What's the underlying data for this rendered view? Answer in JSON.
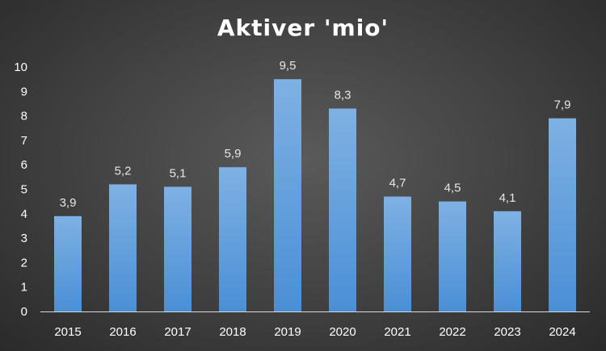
{
  "chart_data": {
    "type": "bar",
    "title": "Aktiver 'mio'",
    "categories": [
      "2015",
      "2016",
      "2017",
      "2018",
      "2019",
      "2020",
      "2021",
      "2022",
      "2023",
      "2024"
    ],
    "values": [
      3.9,
      5.2,
      5.1,
      5.9,
      9.5,
      8.3,
      4.7,
      4.5,
      4.1,
      7.9
    ],
    "data_labels": [
      "3,9",
      "5,2",
      "5,1",
      "5,9",
      "9,5",
      "8,3",
      "4,7",
      "4,5",
      "4,1",
      "7,9"
    ],
    "ylim": [
      0,
      10
    ],
    "yticks": [
      "0",
      "1",
      "2",
      "3",
      "4",
      "5",
      "6",
      "7",
      "8",
      "9",
      "10"
    ],
    "xlabel": "",
    "ylabel": "",
    "grid": false,
    "legend": false,
    "colors": {
      "bar_top": "#7fb1e3",
      "bar_bottom": "#4a8fd6",
      "background": "#404040",
      "axis": "#d9d9d9",
      "text": "#ffffff"
    }
  }
}
